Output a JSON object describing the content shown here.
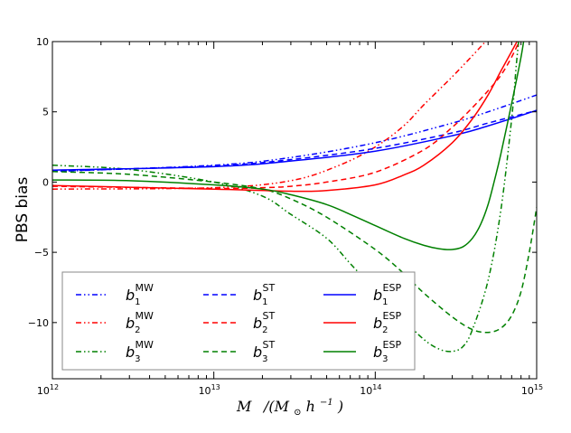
{
  "chart_data": {
    "type": "line",
    "title": "",
    "xlabel": "M   /(M⊙h⁻¹)",
    "xlabel_parts": {
      "var": "M",
      "unit": "/(M",
      "sun": "⊙",
      "h": "h",
      "exp": "−1",
      "close": ")"
    },
    "ylabel": "PBS bias",
    "x_scale": "log",
    "xlim": [
      1000000000000.0,
      1000000000000000.0
    ],
    "ylim": [
      -14,
      10
    ],
    "x_ticks": [
      {
        "value": 1000000000000.0,
        "base": "10",
        "exp": "12"
      },
      {
        "value": 10000000000000.0,
        "base": "10",
        "exp": "13"
      },
      {
        "value": 100000000000000.0,
        "base": "10",
        "exp": "14"
      },
      {
        "value": 1000000000000000.0,
        "base": "10",
        "exp": "15"
      }
    ],
    "y_ticks": [
      {
        "value": 10,
        "label": "10"
      },
      {
        "value": 5,
        "label": "5"
      },
      {
        "value": 0,
        "label": "0"
      },
      {
        "value": -5,
        "label": "−5"
      },
      {
        "value": -10,
        "label": "−10"
      }
    ],
    "grid": false,
    "legend_position": "bottom-left",
    "series": [
      {
        "name": "b1MW",
        "sym": "b",
        "sub": "1",
        "sup": "MW",
        "color": "#0000ff",
        "style": "dashdotdot",
        "x": [
          1000000000000.0,
          10000000000000.0,
          30000000000000.0,
          100000000000000.0,
          300000000000000.0,
          500000000000000.0,
          1000000000000000.0
        ],
        "y": [
          0.75,
          1.2,
          1.75,
          2.8,
          4.2,
          5.0,
          6.2
        ]
      },
      {
        "name": "b2MW",
        "sym": "b",
        "sub": "2",
        "sup": "MW",
        "color": "#ff0000",
        "style": "dashdotdot",
        "x": [
          1000000000000.0,
          10000000000000.0,
          30000000000000.0,
          60000000000000.0,
          100000000000000.0,
          150000000000000.0,
          200000000000000.0,
          300000000000000.0,
          400000000000000.0,
          500000000000000.0,
          580000000000000.0
        ],
        "y": [
          -0.5,
          -0.4,
          0.1,
          1.2,
          2.5,
          4.0,
          5.5,
          7.5,
          9.0,
          10.2,
          11.0
        ]
      },
      {
        "name": "b3MW",
        "sym": "b",
        "sub": "3",
        "sup": "MW",
        "color": "#008000",
        "style": "dashdotdot",
        "x": [
          1000000000000.0,
          3000000000000.0,
          10000000000000.0,
          20000000000000.0,
          30000000000000.0,
          50000000000000.0,
          70000000000000.0,
          100000000000000.0,
          150000000000000.0,
          200000000000000.0,
          250000000000000.0,
          300000000000000.0,
          350000000000000.0,
          400000000000000.0,
          500000000000000.0,
          600000000000000.0,
          700000000000000.0,
          750000000000000.0,
          790000000000000.0
        ],
        "y": [
          1.2,
          0.9,
          0.0,
          -1.0,
          -2.3,
          -4.0,
          -5.8,
          -7.7,
          -9.8,
          -11.2,
          -11.9,
          -12.05,
          -11.7,
          -10.5,
          -7.0,
          -2.0,
          4.5,
          8.5,
          11.0
        ]
      },
      {
        "name": "b1ST",
        "sym": "b",
        "sub": "1",
        "sup": "ST",
        "color": "#0000ff",
        "style": "dashed",
        "x": [
          1000000000000.0,
          10000000000000.0,
          30000000000000.0,
          100000000000000.0,
          300000000000000.0,
          500000000000000.0,
          1000000000000000.0
        ],
        "y": [
          0.78,
          1.15,
          1.6,
          2.4,
          3.5,
          4.2,
          5.1
        ]
      },
      {
        "name": "b2ST",
        "sym": "b",
        "sub": "2",
        "sup": "ST",
        "color": "#ff0000",
        "style": "dashed",
        "x": [
          1000000000000.0,
          10000000000000.0,
          20000000000000.0,
          30000000000000.0,
          50000000000000.0,
          100000000000000.0,
          200000000000000.0,
          300000000000000.0,
          400000000000000.0,
          500000000000000.0,
          600000000000000.0,
          700000000000000.0,
          800000000000000.0,
          850000000000000.0
        ],
        "y": [
          -0.3,
          -0.45,
          -0.4,
          -0.3,
          0.0,
          0.7,
          2.3,
          3.9,
          5.3,
          6.5,
          7.6,
          8.9,
          10.3,
          11.0
        ]
      },
      {
        "name": "b3ST",
        "sym": "b",
        "sub": "3",
        "sup": "ST",
        "color": "#008000",
        "style": "dashed",
        "x": [
          1000000000000.0,
          3000000000000.0,
          10000000000000.0,
          20000000000000.0,
          30000000000000.0,
          50000000000000.0,
          100000000000000.0,
          150000000000000.0,
          200000000000000.0,
          300000000000000.0,
          400000000000000.0,
          500000000000000.0,
          600000000000000.0,
          700000000000000.0,
          800000000000000.0,
          900000000000000.0,
          1000000000000000.0
        ],
        "y": [
          0.75,
          0.55,
          0.0,
          -0.5,
          -1.2,
          -2.5,
          -4.8,
          -6.5,
          -7.9,
          -9.6,
          -10.5,
          -10.7,
          -10.4,
          -9.5,
          -7.8,
          -5.0,
          -1.8
        ]
      },
      {
        "name": "b1ESP",
        "sym": "b",
        "sub": "1",
        "sup": "ESP",
        "color": "#0000ff",
        "style": "solid",
        "x": [
          1000000000000.0,
          10000000000000.0,
          30000000000000.0,
          100000000000000.0,
          300000000000000.0,
          500000000000000.0,
          1000000000000000.0
        ],
        "y": [
          0.85,
          1.1,
          1.5,
          2.2,
          3.3,
          4.0,
          5.1
        ]
      },
      {
        "name": "b2ESP",
        "sym": "b",
        "sub": "2",
        "sup": "ESP",
        "color": "#ff0000",
        "style": "solid",
        "x": [
          1000000000000.0,
          10000000000000.0,
          30000000000000.0,
          50000000000000.0,
          100000000000000.0,
          150000000000000.0,
          200000000000000.0,
          300000000000000.0,
          400000000000000.0,
          500000000000000.0,
          600000000000000.0,
          700000000000000.0,
          800000000000000.0,
          870000000000000.0
        ],
        "y": [
          -0.25,
          -0.5,
          -0.65,
          -0.6,
          -0.2,
          0.5,
          1.2,
          2.8,
          4.5,
          6.2,
          7.9,
          9.3,
          10.5,
          11.0
        ]
      },
      {
        "name": "b3ESP",
        "sym": "b",
        "sub": "3",
        "sup": "ESP",
        "color": "#008000",
        "style": "solid",
        "x": [
          1000000000000.0,
          3000000000000.0,
          10000000000000.0,
          20000000000000.0,
          30000000000000.0,
          50000000000000.0,
          70000000000000.0,
          100000000000000.0,
          150000000000000.0,
          200000000000000.0,
          250000000000000.0,
          300000000000000.0,
          350000000000000.0,
          400000000000000.0,
          450000000000000.0,
          500000000000000.0,
          550000000000000.0,
          600000000000000.0,
          700000000000000.0,
          800000000000000.0,
          850000000000000.0
        ],
        "y": [
          0.15,
          0.1,
          -0.2,
          -0.5,
          -0.9,
          -1.6,
          -2.3,
          -3.1,
          -4.0,
          -4.5,
          -4.75,
          -4.8,
          -4.6,
          -4.0,
          -3.0,
          -1.6,
          0.2,
          2.0,
          5.6,
          8.9,
          10.8
        ]
      }
    ]
  }
}
